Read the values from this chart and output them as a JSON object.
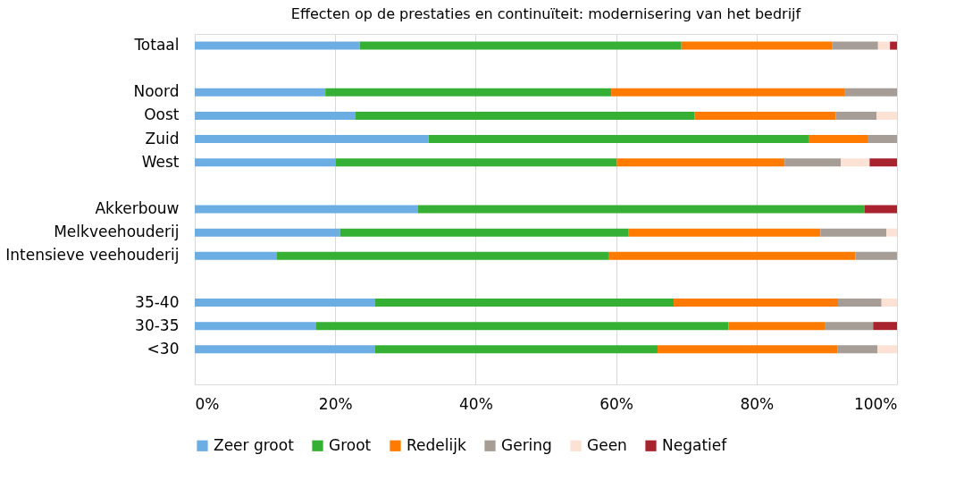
{
  "chart_data": {
    "type": "bar",
    "orientation": "horizontal",
    "stacked": true,
    "title": "Effecten op de prestaties en continuïteit: modernisering van het bedrijf",
    "categories": [
      "Totaal",
      null,
      "Noord",
      "Oost",
      "Zuid",
      "West",
      null,
      "Akkerbouw",
      "Melkveehouderij",
      "Intensieve veehouderij",
      null,
      "35-40",
      "30-35",
      "<30",
      null
    ],
    "series": [
      {
        "name": "Zeer groot",
        "color": "#6cade4",
        "values": [
          23.5,
          null,
          18.6,
          22.9,
          33.3,
          20.1,
          null,
          31.8,
          20.7,
          11.7,
          null,
          25.7,
          17.3,
          25.7,
          null
        ]
      },
      {
        "name": "Groot",
        "color": "#35b035",
        "values": [
          45.8,
          null,
          40.7,
          48.3,
          54.1,
          40.0,
          null,
          63.6,
          41.1,
          47.2,
          null,
          42.5,
          58.7,
          40.2,
          null
        ]
      },
      {
        "name": "Redelijk",
        "color": "#ff7b00",
        "values": [
          21.5,
          null,
          33.3,
          20.1,
          8.4,
          23.9,
          null,
          0,
          27.3,
          35.2,
          null,
          23.4,
          13.7,
          25.6,
          null
        ]
      },
      {
        "name": "Gering",
        "color": "#a59d96",
        "values": [
          6.5,
          null,
          7.4,
          5.8,
          4.2,
          8.0,
          null,
          0,
          9.4,
          5.9,
          null,
          6.2,
          6.9,
          5.7,
          null
        ]
      },
      {
        "name": "Geen",
        "color": "#fbe2d4",
        "values": [
          1.7,
          null,
          0,
          2.9,
          0,
          4.1,
          null,
          0,
          1.5,
          0,
          null,
          2.2,
          0,
          2.8,
          null
        ]
      },
      {
        "name": "Negatief",
        "color": "#a8232e",
        "values": [
          1.0,
          null,
          0,
          0,
          0,
          3.9,
          null,
          4.6,
          0,
          0,
          null,
          0,
          3.4,
          0,
          null
        ]
      }
    ],
    "xlim": [
      0,
      100
    ],
    "xticks": [
      {
        "value": 0,
        "label": "0%"
      },
      {
        "value": 20,
        "label": "20%"
      },
      {
        "value": 40,
        "label": "40%"
      },
      {
        "value": 60,
        "label": "60%"
      },
      {
        "value": 80,
        "label": "80%"
      },
      {
        "value": 100,
        "label": "100%"
      }
    ],
    "grid": "x",
    "legend": "bottom"
  }
}
